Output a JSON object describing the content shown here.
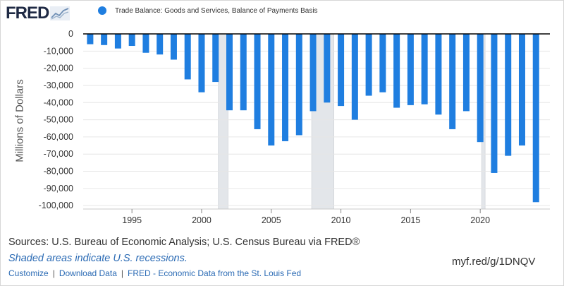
{
  "brand": {
    "logo_text": "FRED",
    "logo_mark": "trend-chart-icon"
  },
  "colors": {
    "bar": "#1f7ee0",
    "recession": "#e3e6ea",
    "axis": "#000000",
    "grid": "#e6e6e6"
  },
  "footer": {
    "sources": "Sources: U.S. Bureau of Economic Analysis; U.S. Census Bureau via FRED®",
    "recession_note": "Shaded areas indicate U.S. recessions.",
    "links": [
      "Customize",
      "Download Data",
      "FRED - Economic Data from the St. Louis Fed"
    ],
    "short_url": "myf.red/g/1DNQV"
  },
  "chart_data": {
    "type": "bar",
    "series": [
      {
        "name": "Trade Balance: Goods and Services, Balance of Payments Basis",
        "x": [
          1992,
          1993,
          1994,
          1995,
          1996,
          1997,
          1998,
          1999,
          2000,
          2001,
          2002,
          2003,
          2004,
          2005,
          2006,
          2007,
          2008,
          2009,
          2010,
          2011,
          2012,
          2013,
          2014,
          2015,
          2016,
          2017,
          2018,
          2019,
          2020,
          2021,
          2022,
          2023,
          2024
        ],
        "values": [
          -6000,
          -6500,
          -8500,
          -7000,
          -11000,
          -12000,
          -15000,
          -26500,
          -34000,
          -28000,
          -44500,
          -44500,
          -55500,
          -65000,
          -62500,
          -59000,
          -45000,
          -40000,
          -42000,
          -50000,
          -36000,
          -34000,
          -43000,
          -41500,
          -41000,
          -47000,
          -55500,
          -45000,
          -63000,
          -81000,
          -71000,
          -65000,
          -98000
        ]
      }
    ],
    "ylabel": "Millions of Dollars",
    "ylim": [
      -102000,
      0
    ],
    "yticks": [
      0,
      -10000,
      -20000,
      -30000,
      -40000,
      -50000,
      -60000,
      -70000,
      -80000,
      -90000,
      -100000
    ],
    "ytick_labels": [
      "0",
      "-10,000",
      "-20,000",
      "-30,000",
      "-40,000",
      "-50,000",
      "-60,000",
      "-70,000",
      "-80,000",
      "-90,000",
      "-100,000"
    ],
    "xticks": [
      1995,
      2000,
      2005,
      2010,
      2015,
      2020
    ],
    "xtick_labels": [
      "1995",
      "2000",
      "2005",
      "2010",
      "2015",
      "2020"
    ],
    "xlim": [
      1991.5,
      2025.0
    ],
    "recessions": [
      [
        2001.2,
        2001.9
      ],
      [
        2007.9,
        2009.5
      ],
      [
        2020.1,
        2020.35
      ]
    ],
    "grid": true,
    "legend": "top-left"
  }
}
